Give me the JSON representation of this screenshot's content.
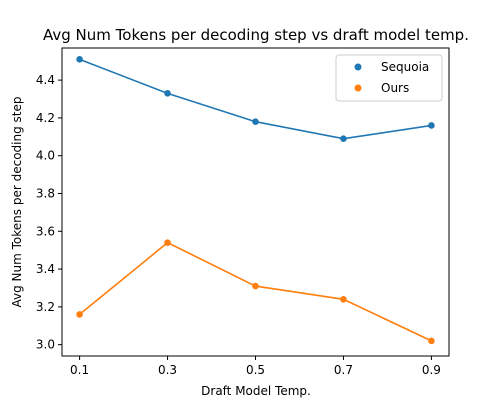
{
  "chart_data": {
    "type": "line",
    "title": "Avg Num Tokens per decoding step vs draft model temp.",
    "xlabel": "Draft Model Temp.",
    "ylabel": "Avg Num Tokens per decoding step",
    "x": [
      0.1,
      0.3,
      0.5,
      0.7,
      0.9
    ],
    "x_tick_labels": [
      "0.1",
      "0.3",
      "0.5",
      "0.7",
      "0.9"
    ],
    "y_ticks": [
      3.0,
      3.2,
      3.4,
      3.6,
      3.8,
      4.0,
      4.2,
      4.4
    ],
    "y_tick_labels": [
      "3.0",
      "3.2",
      "3.4",
      "3.6",
      "3.8",
      "4.0",
      "4.2",
      "4.4"
    ],
    "xlim": [
      0.06,
      0.94
    ],
    "ylim": [
      2.94,
      4.57
    ],
    "grid": false,
    "legend_position": "top-right",
    "series": [
      {
        "name": "Sequoia",
        "color": "#1f77b4",
        "values": [
          4.51,
          4.33,
          4.18,
          4.09,
          4.16
        ]
      },
      {
        "name": "Ours",
        "color": "#ff7f0e",
        "values": [
          3.16,
          3.54,
          3.31,
          3.24,
          3.02
        ]
      }
    ]
  }
}
